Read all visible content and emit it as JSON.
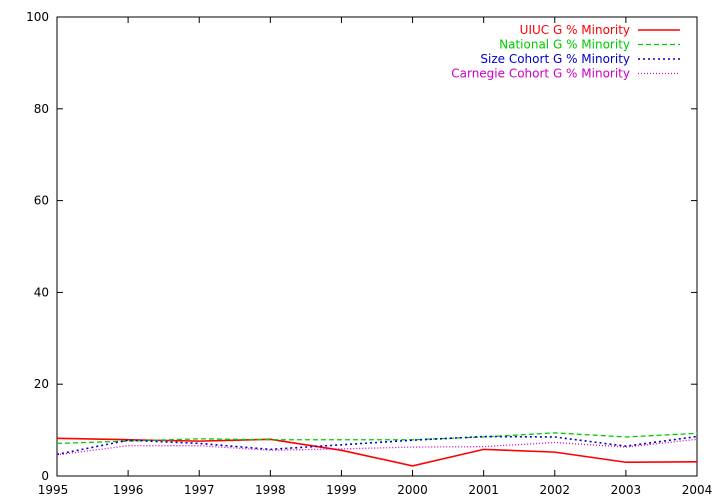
{
  "chart_data": {
    "type": "line",
    "x": [
      1995,
      1996,
      1997,
      1998,
      1999,
      2000,
      2001,
      2002,
      2003,
      2004
    ],
    "xlim": [
      1995,
      2004
    ],
    "ylim": [
      0,
      100
    ],
    "yticks": [
      0,
      20,
      40,
      60,
      80,
      100
    ],
    "xticks": [
      1995,
      1996,
      1997,
      1998,
      1999,
      2000,
      2001,
      2002,
      2003,
      2004
    ],
    "grid": false,
    "legend_position": "top-right",
    "series": [
      {
        "name": "UIUC G % Minority",
        "color": "#ff0000",
        "dash": "solid",
        "values": [
          8.2,
          7.9,
          7.6,
          8.0,
          5.6,
          2.2,
          5.8,
          5.2,
          3.0,
          3.1
        ]
      },
      {
        "name": "National G % Minority",
        "color": "#00cc00",
        "dash": "dashed",
        "values": [
          7.1,
          7.6,
          8.1,
          7.9,
          7.9,
          7.9,
          8.5,
          9.4,
          8.5,
          9.3
        ]
      },
      {
        "name": "Size Cohort G % Minority",
        "color": "#0000cc",
        "dash": "dotted",
        "values": [
          4.7,
          7.8,
          7.1,
          5.8,
          6.8,
          7.8,
          8.6,
          8.5,
          6.5,
          8.6
        ]
      },
      {
        "name": "Carnegie Cohort G % Minority",
        "color": "#cc00cc",
        "dash": "finedotted",
        "values": [
          4.6,
          6.6,
          6.6,
          5.6,
          5.9,
          6.3,
          6.4,
          7.3,
          6.3,
          8.0
        ]
      }
    ]
  }
}
